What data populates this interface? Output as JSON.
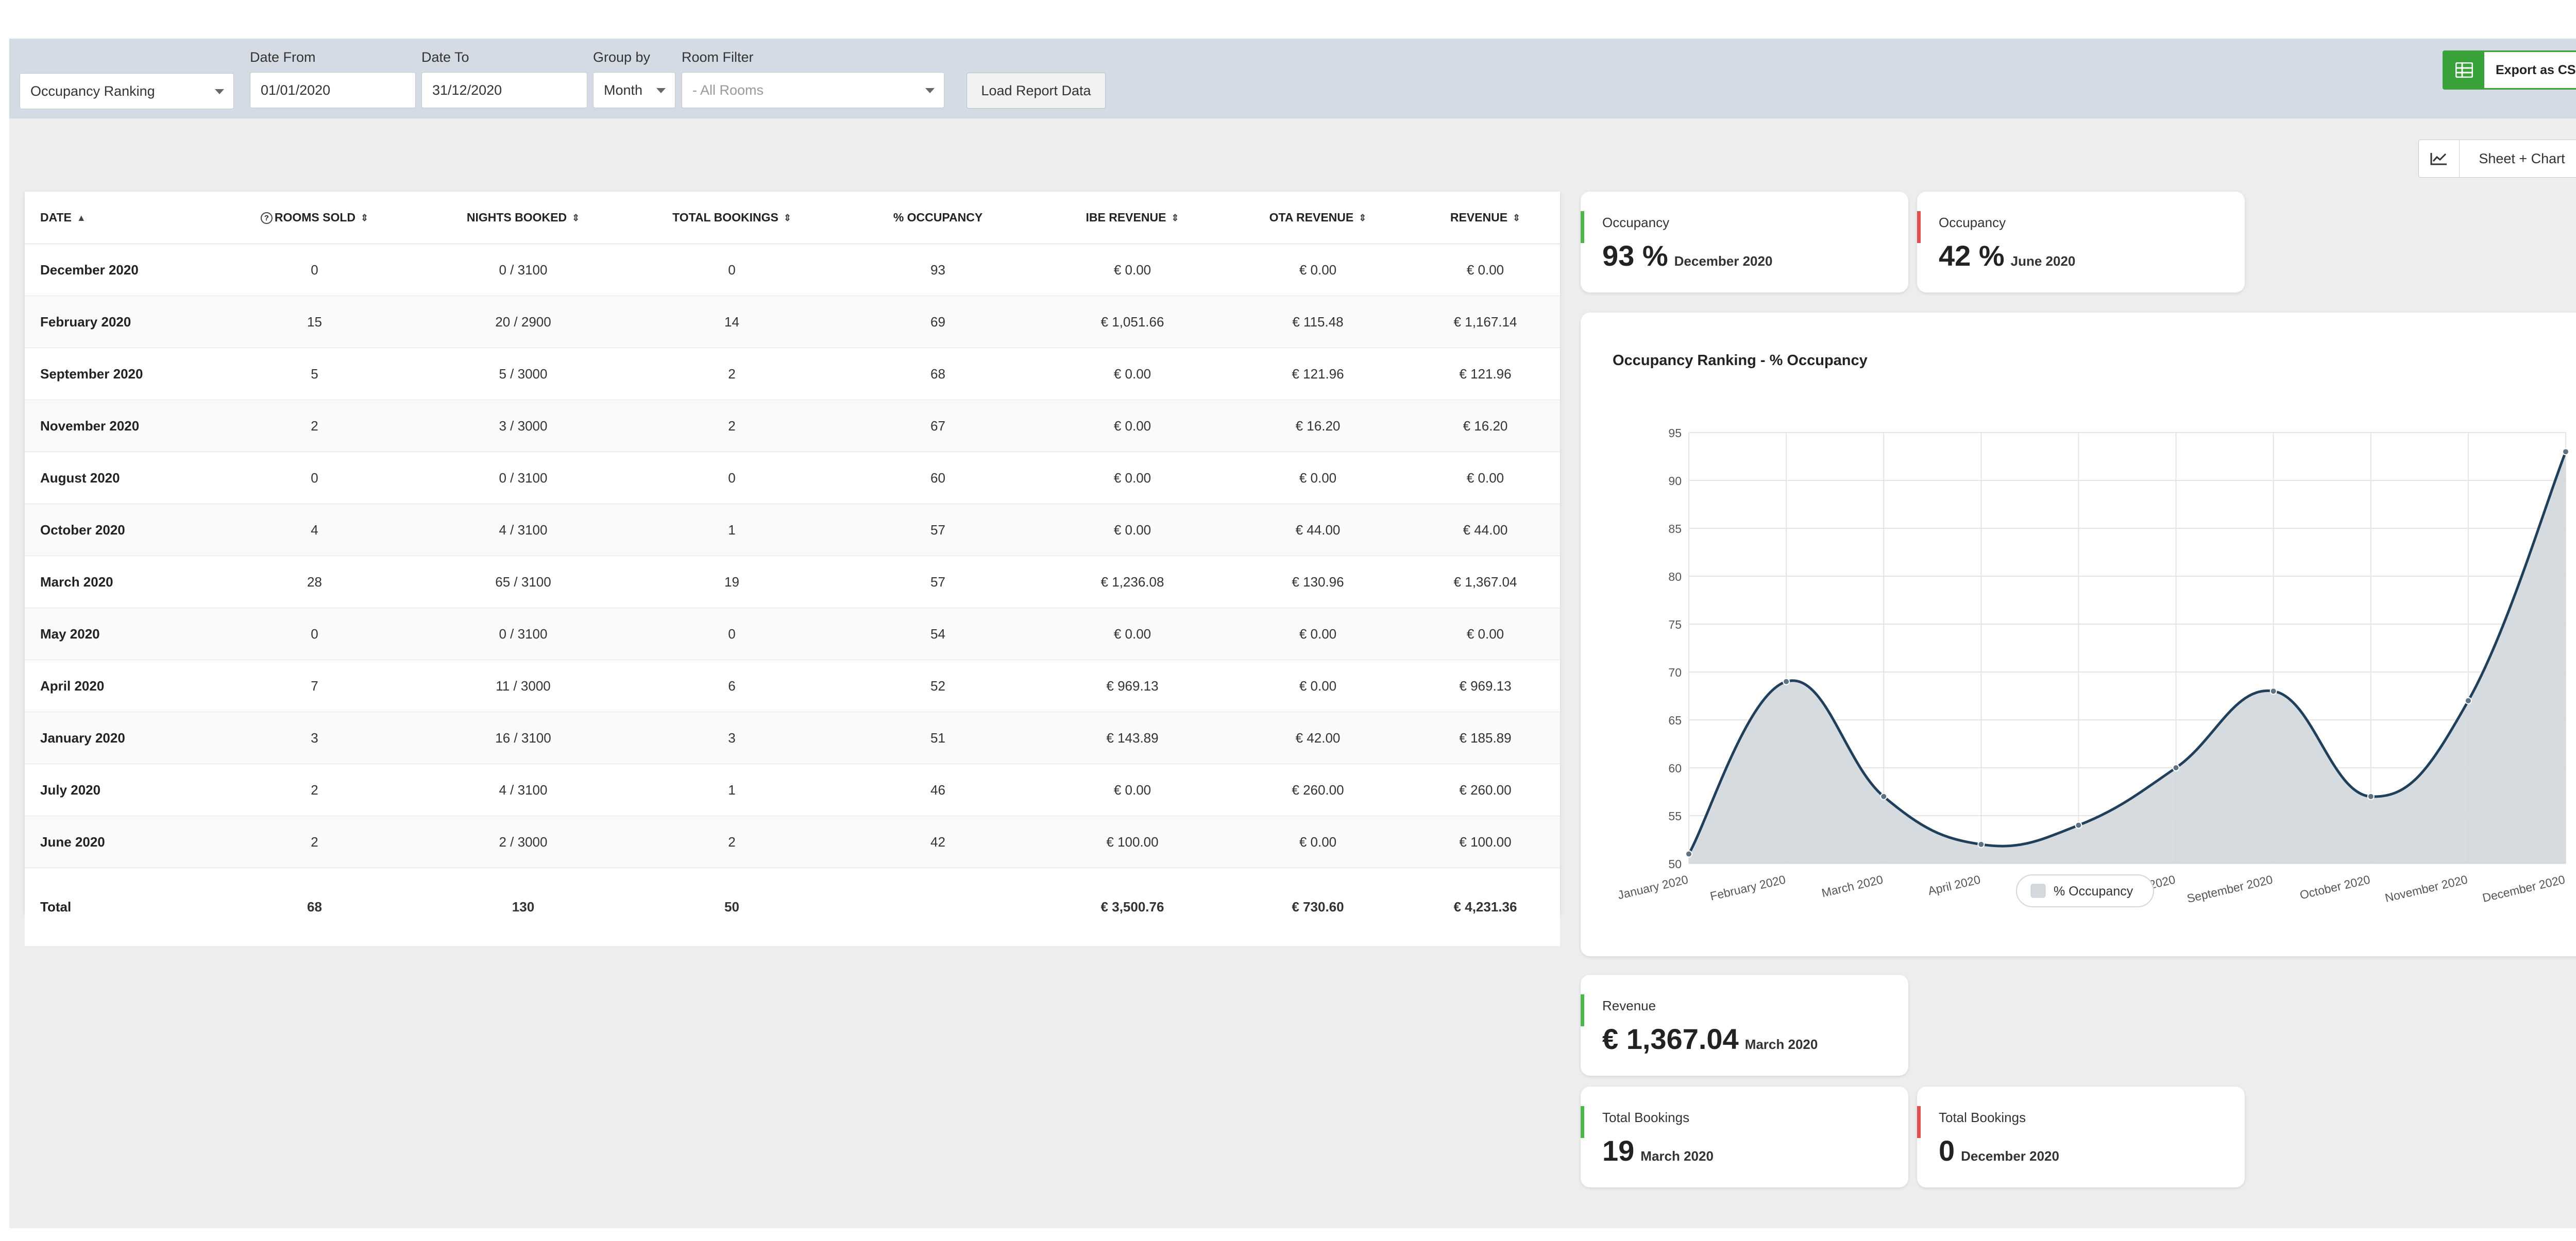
{
  "filters": {
    "report_type": "Occupancy Ranking",
    "date_from": {
      "label": "Date From",
      "value": "01/01/2020"
    },
    "date_to": {
      "label": "Date To",
      "value": "31/12/2020"
    },
    "group_by": {
      "label": "Group by",
      "value": "Month"
    },
    "room_filter": {
      "label": "Room Filter",
      "placeholder": "- All Rooms"
    },
    "load_button": "Load Report Data"
  },
  "export_button": "Export as CSV",
  "view_switch": {
    "label": "Sheet + Chart",
    "icon": "line-chart-icon"
  },
  "table": {
    "columns": [
      "DATE",
      "ROOMS SOLD",
      "NIGHTS BOOKED",
      "TOTAL BOOKINGS",
      "% OCCUPANCY",
      "IBE REVENUE",
      "OTA REVENUE",
      "REVENUE"
    ],
    "rows": [
      [
        "December 2020",
        "0",
        "0 / 3100",
        "0",
        "93",
        "€ 0.00",
        "€ 0.00",
        "€ 0.00"
      ],
      [
        "February 2020",
        "15",
        "20 / 2900",
        "14",
        "69",
        "€ 1,051.66",
        "€ 115.48",
        "€ 1,167.14"
      ],
      [
        "September 2020",
        "5",
        "5 / 3000",
        "2",
        "68",
        "€ 0.00",
        "€ 121.96",
        "€ 121.96"
      ],
      [
        "November 2020",
        "2",
        "3 / 3000",
        "2",
        "67",
        "€ 0.00",
        "€ 16.20",
        "€ 16.20"
      ],
      [
        "August 2020",
        "0",
        "0 / 3100",
        "0",
        "60",
        "€ 0.00",
        "€ 0.00",
        "€ 0.00"
      ],
      [
        "October 2020",
        "4",
        "4 / 3100",
        "1",
        "57",
        "€ 0.00",
        "€ 44.00",
        "€ 44.00"
      ],
      [
        "March 2020",
        "28",
        "65 / 3100",
        "19",
        "57",
        "€ 1,236.08",
        "€ 130.96",
        "€ 1,367.04"
      ],
      [
        "May 2020",
        "0",
        "0 / 3100",
        "0",
        "54",
        "€ 0.00",
        "€ 0.00",
        "€ 0.00"
      ],
      [
        "April 2020",
        "7",
        "11 / 3000",
        "6",
        "52",
        "€ 969.13",
        "€ 0.00",
        "€ 969.13"
      ],
      [
        "January 2020",
        "3",
        "16 / 3100",
        "3",
        "51",
        "€ 143.89",
        "€ 42.00",
        "€ 185.89"
      ],
      [
        "July 2020",
        "2",
        "4 / 3100",
        "1",
        "46",
        "€ 0.00",
        "€ 260.00",
        "€ 260.00"
      ],
      [
        "June 2020",
        "2",
        "2 / 3000",
        "2",
        "42",
        "€ 100.00",
        "€ 0.00",
        "€ 100.00"
      ]
    ],
    "total": [
      "Total",
      "68",
      "130",
      "50",
      "",
      "€ 3,500.76",
      "€ 730.60",
      "€ 4,231.36"
    ]
  },
  "stats": {
    "occ_high": {
      "title": "Occupancy",
      "value": "93 %",
      "period": "December 2020",
      "accent": "#4cb84c"
    },
    "occ_low": {
      "title": "Occupancy",
      "value": "42 %",
      "period": "June 2020",
      "accent": "#e05252"
    },
    "revenue_high": {
      "title": "Revenue",
      "value": "€ 1,367.04",
      "period": "March 2020",
      "accent": "#4cb84c"
    },
    "bookings_high": {
      "title": "Total Bookings",
      "value": "19",
      "period": "March 2020",
      "accent": "#4cb84c"
    },
    "bookings_low": {
      "title": "Total Bookings",
      "value": "0",
      "period": "December 2020",
      "accent": "#e05252"
    }
  },
  "chart_data": {
    "type": "area",
    "title": "Occupancy Ranking - % Occupancy",
    "categories": [
      "January 2020",
      "February 2020",
      "March 2020",
      "April 2020",
      "May 2020",
      "August 2020",
      "September 2020",
      "October 2020",
      "November 2020",
      "December 2020"
    ],
    "series": [
      {
        "name": "% Occupancy",
        "values": [
          51,
          69,
          57,
          52,
          54,
          60,
          68,
          57,
          67,
          93
        ]
      }
    ],
    "ylim": [
      50,
      95
    ],
    "yticks": [
      50,
      55,
      60,
      65,
      70,
      75,
      80,
      85,
      90,
      95
    ],
    "grid": true,
    "legend": "bottom-center",
    "colors": {
      "line": "#1f3f5a",
      "fill": "#d3d9dd"
    }
  }
}
